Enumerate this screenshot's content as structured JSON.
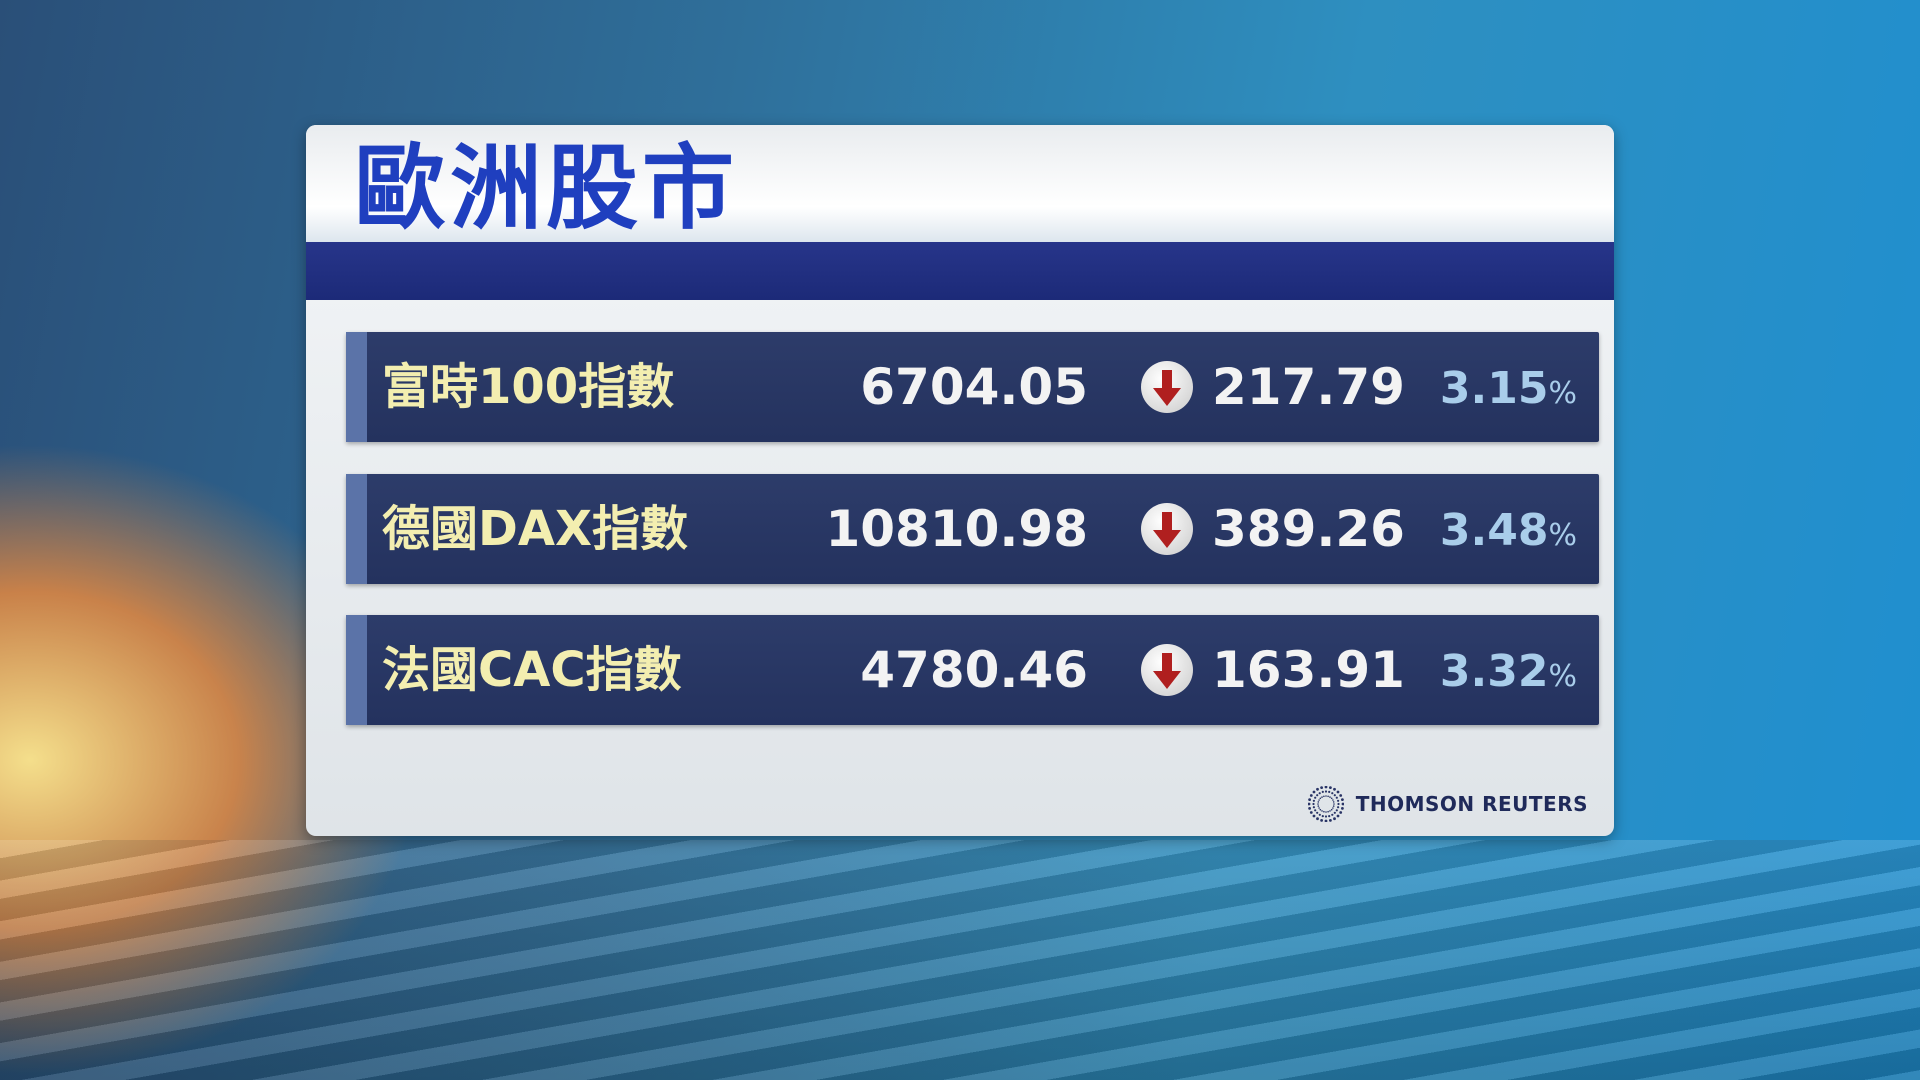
{
  "title": "歐洲股市",
  "rows": [
    {
      "name": "富時100指數",
      "value": "6704.05",
      "direction": "down",
      "change": "217.79",
      "percent": "3.15",
      "percent_sign": "%"
    },
    {
      "name": "德國DAX指數",
      "value": "10810.98",
      "direction": "down",
      "change": "389.26",
      "percent": "3.48",
      "percent_sign": "%"
    },
    {
      "name": "法國CAC指數",
      "value": "4780.46",
      "direction": "down",
      "change": "163.91",
      "percent": "3.32",
      "percent_sign": "%"
    }
  ],
  "source": "THOMSON REUTERS",
  "colors": {
    "title": "#1f3fbf",
    "row_bg": "#2d3c6a",
    "name": "#f3eeb0",
    "percent": "#a9cdea",
    "down_arrow": "#b01f1f"
  },
  "icons": {
    "change": "arrow-down-icon",
    "logo": "thomson-reuters-logo"
  }
}
